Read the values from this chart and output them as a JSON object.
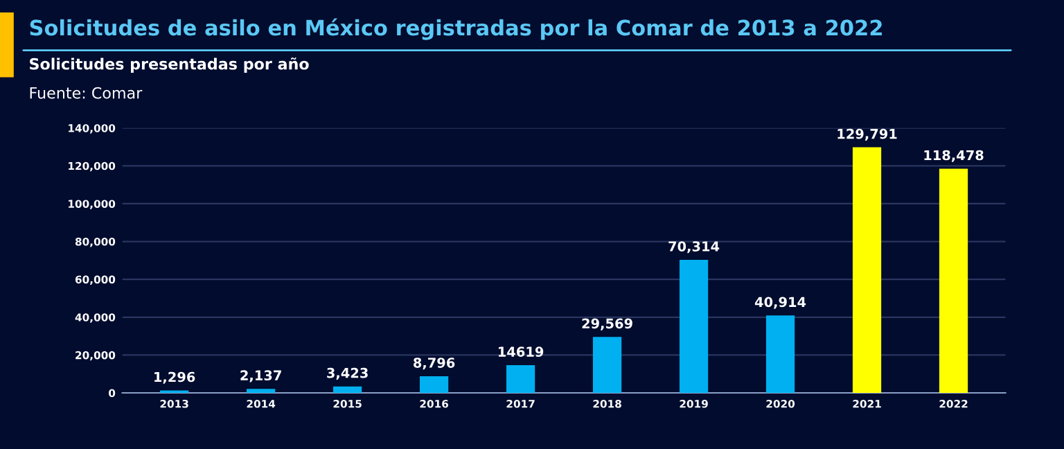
{
  "chart_data": {
    "type": "bar",
    "title": "Solicitudes de asilo en México registradas por la Comar de 2013 a 2022",
    "subtitle": "Solicitudes presentadas por año",
    "annotations": [
      "Fuente: Comar"
    ],
    "categories": [
      "2013",
      "2014",
      "2015",
      "2016",
      "2017",
      "2018",
      "2019",
      "2020",
      "2021",
      "2022"
    ],
    "values": [
      1296,
      2137,
      3423,
      8796,
      14619,
      29569,
      70314,
      40914,
      129791,
      118478
    ],
    "colors": [
      "#00b0f0",
      "#00b0f0",
      "#00b0f0",
      "#00b0f0",
      "#00b0f0",
      "#00b0f0",
      "#00b0f0",
      "#00b0f0",
      "#ffff00",
      "#ffff00"
    ],
    "value_labels": [
      "1,296",
      "2,137",
      "3,423",
      "8,796",
      "14619",
      "29,569",
      "70,314",
      "40,914",
      "129,791",
      "118,478"
    ],
    "ylim": [
      0,
      140000
    ],
    "yticks": [
      0,
      {
        "value": 20000,
        "label": "20,000"
      },
      {
        "value": 40000,
        "label": "40,000"
      },
      {
        "value": 60000,
        "label": "60,000"
      },
      {
        "value": 80000,
        "label": "80,000"
      },
      {
        "value": 100000,
        "label": "100,000"
      },
      {
        "value": 120000,
        "label": "120,000"
      },
      {
        "value": 140000,
        "label": "140,000"
      }
    ],
    "grid": "y"
  }
}
